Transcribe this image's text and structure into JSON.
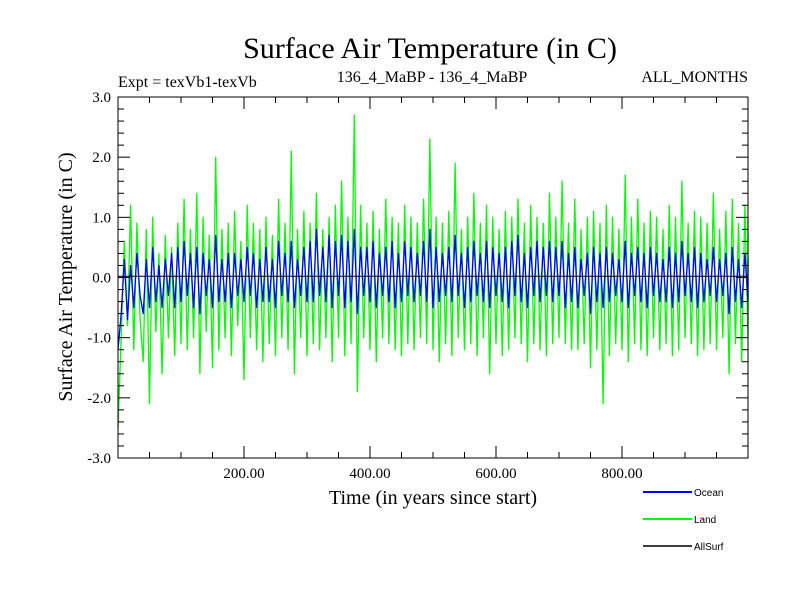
{
  "chart_data": {
    "type": "line",
    "title": "Surface Air Temperature (in C)",
    "subtitle_left": "Expt = texVb1-texVb",
    "subtitle_center": "136_4_MaBP - 136_4_MaBP",
    "subtitle_right": "ALL_MONTHS",
    "xlabel": "Time (in years since start)",
    "ylabel": "Surface Air Temperature (in C)",
    "xlim": [
      0,
      1000
    ],
    "ylim": [
      -3.0,
      3.0
    ],
    "x_ticks": [
      200,
      400,
      600,
      800
    ],
    "x_tick_labels": [
      "200.00",
      "400.00",
      "600.00",
      "800.00"
    ],
    "y_ticks": [
      -3,
      -2,
      -1,
      0,
      1,
      2,
      3
    ],
    "y_tick_labels": [
      "-3.0",
      "-2.0",
      "-1.0",
      "0.0",
      "1.0",
      "2.0",
      "3.0"
    ],
    "legend": [
      {
        "name": "Ocean",
        "color": "#0000ff"
      },
      {
        "name": "Land",
        "color": "#00ff00"
      },
      {
        "name": "AllSurf",
        "color": "#000000"
      }
    ],
    "series": [
      {
        "name": "Land",
        "color": "#00ff00",
        "x_step": 5,
        "values": [
          -2.5,
          -1.0,
          0.6,
          -0.8,
          1.2,
          -1.2,
          0.9,
          -0.7,
          -1.4,
          0.8,
          -2.1,
          1.0,
          -0.9,
          0.4,
          -1.6,
          0.7,
          -1.0,
          0.5,
          -1.3,
          0.9,
          -1.1,
          1.3,
          -1.2,
          0.8,
          -1.0,
          1.4,
          -1.6,
          1.0,
          -0.9,
          0.7,
          -1.5,
          2.0,
          -1.2,
          0.8,
          -1.0,
          0.9,
          -1.3,
          1.1,
          -0.8,
          0.6,
          -1.7,
          1.2,
          -1.0,
          0.9,
          -1.2,
          0.8,
          -1.4,
          1.0,
          -1.1,
          0.7,
          -1.3,
          1.3,
          -1.0,
          0.9,
          -1.2,
          2.1,
          -1.6,
          0.8,
          -1.0,
          1.1,
          -1.3,
          0.9,
          -1.1,
          1.4,
          -1.2,
          0.8,
          -1.0,
          1.0,
          -1.4,
          1.2,
          -1.0,
          1.6,
          -1.3,
          1.0,
          -1.1,
          2.7,
          -1.9,
          1.2,
          -1.0,
          0.9,
          -1.2,
          1.1,
          -1.4,
          0.8,
          -1.0,
          1.3,
          -1.1,
          1.0,
          -1.2,
          0.9,
          -1.3,
          1.2,
          -1.1,
          1.0,
          -1.2,
          0.9,
          -1.0,
          1.3,
          -1.1,
          2.3,
          -1.2,
          1.0,
          -1.4,
          0.9,
          -1.1,
          1.1,
          -1.3,
          1.9,
          -1.0,
          0.8,
          -1.2,
          1.0,
          -1.1,
          1.4,
          -1.3,
          0.9,
          -1.0,
          1.2,
          -1.6,
          1.0,
          -1.1,
          0.8,
          -1.3,
          1.1,
          -1.2,
          1.0,
          -1.0,
          1.3,
          -1.1,
          0.9,
          -1.4,
          1.2,
          -1.1,
          1.0,
          -1.2,
          0.9,
          -1.3,
          1.4,
          -1.1,
          1.0,
          -1.0,
          1.6,
          -1.1,
          0.9,
          -1.2,
          1.3,
          -1.2,
          0.8,
          -1.1,
          1.0,
          -1.5,
          1.1,
          -1.2,
          0.9,
          -2.1,
          1.2,
          -1.3,
          1.0,
          -1.1,
          0.8,
          -1.2,
          1.7,
          -1.4,
          1.0,
          -1.1,
          1.3,
          -1.2,
          0.9,
          -1.3,
          1.1,
          -1.0,
          1.0,
          -1.2,
          0.8,
          -1.1,
          1.2,
          -1.3,
          1.0,
          -1.2,
          1.6,
          -1.0,
          0.9,
          -1.1,
          1.1,
          -1.3,
          1.0,
          -1.2,
          0.9,
          -1.1,
          1.4,
          -1.2,
          0.8,
          -1.0,
          1.1,
          -1.6,
          1.3,
          -1.1,
          0.9,
          -1.4,
          1.2,
          -1.0,
          1.0
        ]
      },
      {
        "name": "Ocean",
        "color": "#0000ff",
        "x_step": 5,
        "values": [
          -1.2,
          -0.6,
          0.3,
          -0.7,
          0.2,
          -0.5,
          0.4,
          -0.3,
          -0.6,
          0.3,
          -0.5,
          0.5,
          -0.4,
          0.2,
          -0.5,
          0.3,
          -0.3,
          0.4,
          -0.5,
          0.5,
          -0.4,
          0.6,
          -0.3,
          0.4,
          -0.5,
          0.5,
          -0.6,
          0.4,
          -0.3,
          0.3,
          -0.5,
          0.7,
          -0.4,
          0.3,
          -0.4,
          0.4,
          -0.5,
          0.4,
          -0.3,
          0.3,
          -0.4,
          0.5,
          -0.3,
          0.4,
          -0.5,
          0.3,
          -0.4,
          0.5,
          -0.4,
          0.3,
          -0.5,
          0.6,
          -0.3,
          0.4,
          -0.4,
          0.6,
          -0.5,
          0.3,
          -0.3,
          0.5,
          -0.4,
          0.6,
          -0.4,
          0.8,
          -0.3,
          0.5,
          -0.4,
          0.7,
          -0.5,
          0.6,
          -0.3,
          0.7,
          -0.5,
          0.6,
          -0.4,
          0.8,
          -0.6,
          0.5,
          -0.3,
          0.5,
          -0.4,
          0.6,
          -0.5,
          0.4,
          -0.3,
          0.5,
          -0.4,
          0.6,
          -0.5,
          0.4,
          -0.4,
          0.6,
          -0.3,
          0.5,
          -0.4,
          0.4,
          -0.3,
          0.6,
          -0.4,
          0.8,
          -0.5,
          0.5,
          -0.4,
          0.4,
          -0.3,
          0.5,
          -0.4,
          0.7,
          -0.3,
          0.4,
          -0.5,
          0.5,
          -0.4,
          0.6,
          -0.3,
          0.4,
          -0.4,
          0.6,
          -0.5,
          0.5,
          -0.3,
          0.4,
          -0.4,
          0.5,
          -0.5,
          0.6,
          -0.3,
          0.7,
          -0.4,
          0.4,
          -0.5,
          0.5,
          -0.3,
          0.6,
          -0.4,
          0.5,
          -0.3,
          0.6,
          -0.4,
          0.5,
          -0.3,
          0.6,
          -0.5,
          0.4,
          -0.4,
          0.5,
          -0.5,
          0.3,
          -0.3,
          0.4,
          -0.6,
          0.5,
          -0.4,
          0.4,
          -0.5,
          0.5,
          -0.4,
          0.4,
          -0.3,
          0.3,
          -0.4,
          0.6,
          -0.5,
          0.4,
          -0.3,
          0.5,
          -0.4,
          0.4,
          -0.5,
          0.5,
          -0.3,
          0.4,
          -0.4,
          0.3,
          -0.4,
          0.5,
          -0.5,
          0.4,
          -0.4,
          0.6,
          -0.3,
          0.4,
          -0.4,
          0.5,
          -0.5,
          0.4,
          -0.4,
          0.3,
          -0.3,
          0.5,
          -0.4,
          0.3,
          -0.3,
          0.4,
          -0.6,
          0.5,
          -0.4,
          0.3,
          -0.5,
          0.4,
          -0.4,
          0.3
        ]
      },
      {
        "name": "AllSurf",
        "color": "#000000",
        "x_step": 50,
        "values": [
          0.02,
          0.02,
          0.02,
          0.02,
          0.02,
          0.02,
          0.02,
          0.02,
          0.02,
          0.02,
          0.02,
          0.02,
          0.02,
          0.02,
          0.02,
          0.02,
          0.02,
          0.02,
          0.02,
          0.02,
          0.02
        ]
      }
    ]
  }
}
